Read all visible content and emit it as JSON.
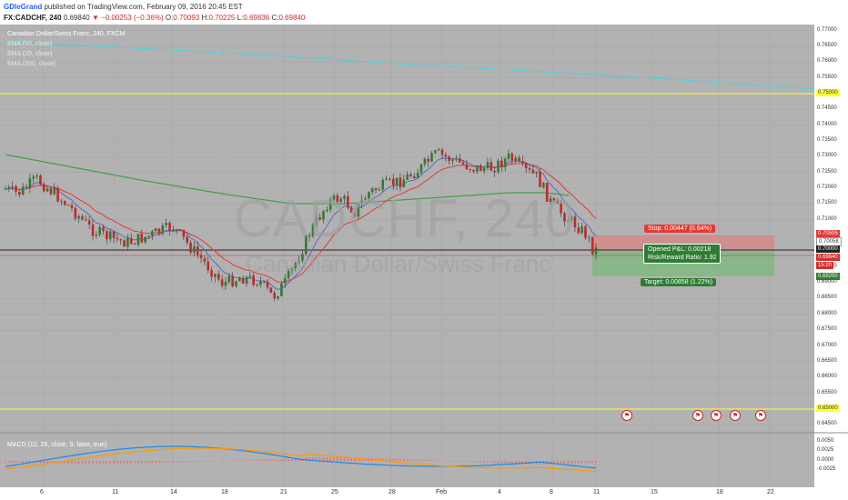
{
  "header": {
    "author": "GDleGrand",
    "published": "published on TradingView.com, February 09, 2016 20:45 EST",
    "symbol": "FX:CADCHF, 240",
    "last": "0.69840",
    "change": "▼ −0.00253 (−0.36%)",
    "o_label": "O:",
    "o_value": "0.70093",
    "h_label": "H:",
    "h_value": "0.70225",
    "l_label": "L:",
    "l_value": "0.69836",
    "c_label": "C:",
    "c_value": "0.69840"
  },
  "legend": {
    "title": "Canadian Dollar/Swiss Franc, 240, FXCM",
    "ema50": "EMA (50, close)",
    "ema20": "EMA (20, close)",
    "ema200": "EMA (200, close)"
  },
  "watermark": {
    "symbol": "CADCHF, 240",
    "name": "Canadian Dollar/Swiss Franc"
  },
  "macd": {
    "label": "MACD (12, 26, close, 9, false, true)"
  },
  "position": {
    "stop": "Stop: 0.00447 (0.64%)",
    "opened_pl": "Opened P&L: 0.00218",
    "rr_ratio": "Risk/Reward Ratio: 1.92",
    "target": "Target: 0.00858 (1.22%)"
  },
  "price_axis": {
    "ticks": [
      "0.77000",
      "0.76500",
      "0.76000",
      "0.75500",
      "0.75000",
      "0.74500",
      "0.74000",
      "0.73500",
      "0.73000",
      "0.72500",
      "0.72000",
      "0.71500",
      "0.71000",
      "0.70500",
      "0.70000",
      "0.69500",
      "0.69000",
      "0.68500",
      "0.68000",
      "0.67500",
      "0.67000",
      "0.66500",
      "0.66000",
      "0.65500",
      "0.65000",
      "0.64500"
    ],
    "levels": {
      "level_75000": "0.75000",
      "stop_price": "0.70505",
      "stop_price2": "0.70058",
      "entry": "0.70000",
      "last": "0.69840",
      "countdown": "15:20",
      "target_price": "0.69200",
      "level_65000": "0.65000"
    },
    "macd_ticks": [
      "0.0050",
      "0.0025",
      "0.0000",
      "-0.0025"
    ]
  },
  "time_axis": {
    "labels": [
      "6",
      "11",
      "14",
      "18",
      "21",
      "25",
      "28",
      "Feb",
      "4",
      "8",
      "11",
      "15",
      "18",
      "22"
    ]
  },
  "colors": {
    "background": "#b2b2b2",
    "grid": "#a6a6a6",
    "up_candle": "#2e7d32",
    "down_candle": "#c62828",
    "ema20": "#5c6bc0",
    "ema50": "#e53935",
    "ema200": "#43a047",
    "ema_long": "#4dd0e1",
    "level_line": "#ffff33",
    "macd_line": "#1e88e5",
    "signal_line": "#ff9800",
    "hist": "#e57373",
    "stop_zone": "#e57373",
    "target_zone": "#66bb6a"
  },
  "icons": {
    "event_flags": [
      "flag-icon",
      "flag-icon",
      "flag-icon",
      "flag-icon",
      "flag-icon"
    ]
  }
}
